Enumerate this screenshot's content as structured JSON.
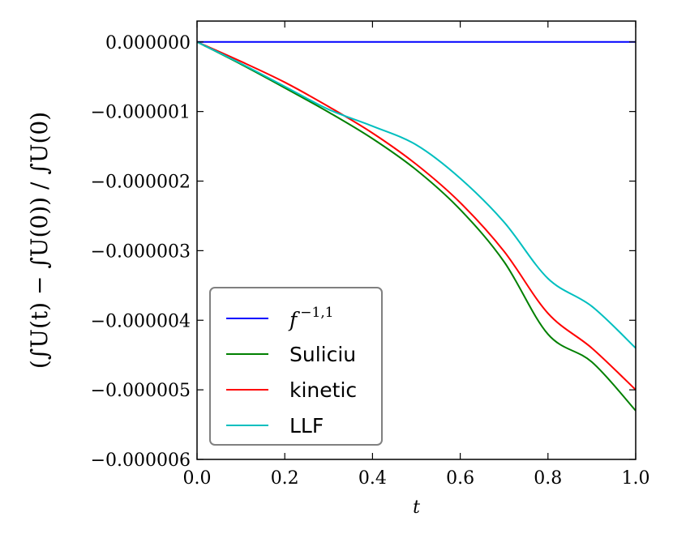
{
  "chart_data": {
    "type": "line",
    "xlabel": "t",
    "ylabel": "(∫U(t) − ∫U(0)) / ∫U(0)",
    "xlim": [
      0.0,
      1.0
    ],
    "ylim": [
      -6e-06,
      3e-07
    ],
    "x_ticks": [
      0.0,
      0.2,
      0.4,
      0.6,
      0.8,
      1.0
    ],
    "x_tick_labels": [
      "0.0",
      "0.2",
      "0.4",
      "0.6",
      "0.8",
      "1.0"
    ],
    "y_ticks": [
      0.0,
      -1e-06,
      -2e-06,
      -3e-06,
      -4e-06,
      -5e-06,
      -6e-06
    ],
    "y_tick_labels": [
      "0.000000",
      "−0.000001",
      "−0.000002",
      "−0.000003",
      "−0.000004",
      "−0.000005",
      "−0.000006"
    ],
    "grid": false,
    "legend_position": "lower-left",
    "x": [
      0.0,
      0.1,
      0.2,
      0.3,
      0.4,
      0.5,
      0.6,
      0.7,
      0.8,
      0.9,
      1.0
    ],
    "series": [
      {
        "name": "f^{-1,1}",
        "label_base": "f",
        "label_sup": "−1,1",
        "color": "#0000ff",
        "values": [
          0,
          0,
          0,
          0,
          0,
          0,
          0,
          0,
          0,
          0,
          0
        ]
      },
      {
        "name": "Suliciu",
        "color": "#008000",
        "values": [
          0,
          -3.2e-07,
          -6.6e-07,
          -1.01e-06,
          -1.39e-06,
          -1.84e-06,
          -2.41e-06,
          -3.16e-06,
          -4.2e-06,
          -4.6e-06,
          -5.3e-06
        ]
      },
      {
        "name": "kinetic",
        "color": "#ff0000",
        "values": [
          0,
          -2.8e-07,
          -5.8e-07,
          -9.3e-07,
          -1.31e-06,
          -1.76e-06,
          -2.31e-06,
          -3.01e-06,
          -3.9e-06,
          -4.4e-06,
          -5e-06
        ]
      },
      {
        "name": "LLF",
        "color": "#00bfbf",
        "values": [
          0,
          -3.1e-07,
          -6.4e-07,
          -9.7e-07,
          -1.21e-06,
          -1.48e-06,
          -1.96e-06,
          -2.59e-06,
          -3.4e-06,
          -3.8e-06,
          -4.4e-06
        ]
      }
    ]
  }
}
